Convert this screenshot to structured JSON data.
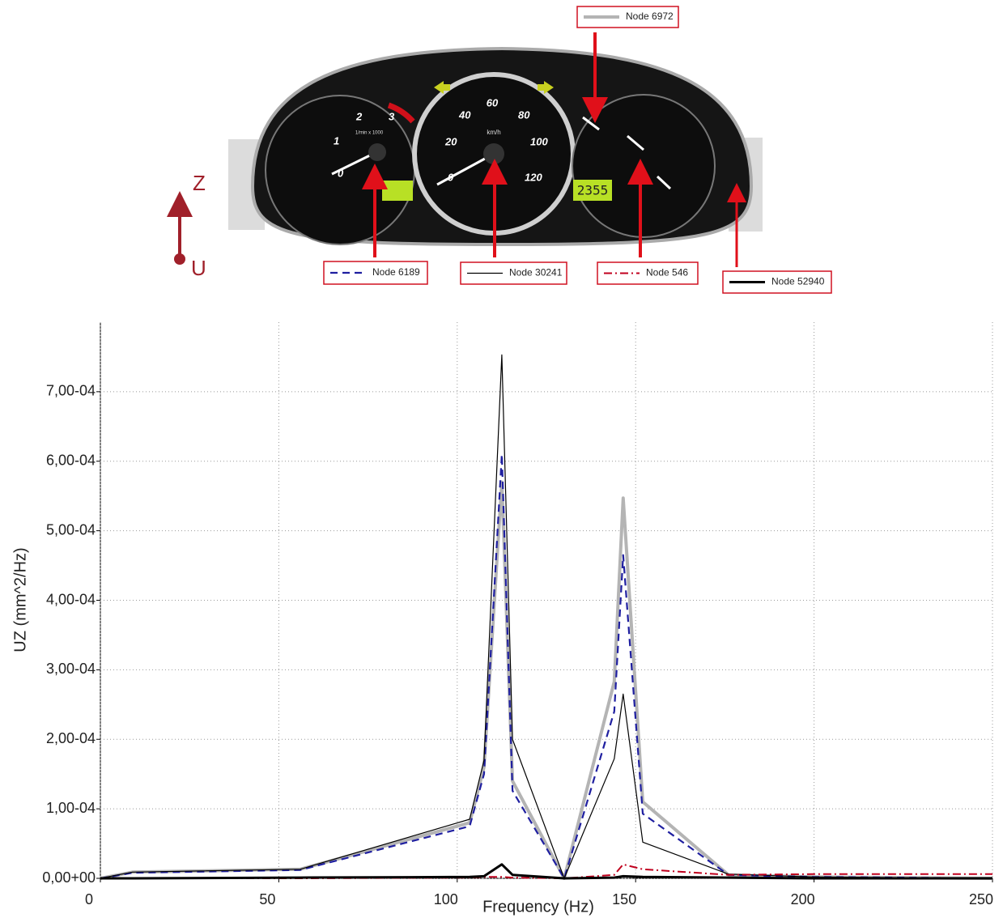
{
  "figure": {
    "axis_z": "Z",
    "axis_u": "U",
    "speed_unit": "km/h",
    "tach_unit": "1/min x 1000",
    "odometer": "2355",
    "speed_labels": [
      "0",
      "20",
      "40",
      "60",
      "80",
      "100",
      "120"
    ],
    "tach_labels": [
      "0",
      "1",
      "2",
      "3"
    ]
  },
  "chart_data": {
    "type": "line",
    "xlabel": "Frequency (Hz)",
    "ylabel": "UZ (mm^2/Hz)",
    "x": [
      0,
      9,
      56,
      103.5,
      107.5,
      112.5,
      115.5,
      130,
      144,
      146.5,
      152,
      176,
      200,
      250
    ],
    "series": [
      {
        "name": "Node 6972",
        "color": "#b4b4b4",
        "linestyle": "solid",
        "values": [
          0,
          9e-06,
          1.3e-05,
          8e-05,
          0.00016,
          0.00057,
          0.00014,
          0,
          0.000283,
          0.000547,
          0.00011,
          5e-06,
          2e-06,
          0
        ]
      },
      {
        "name": "Node 6189",
        "color": "#1f1fa0",
        "linestyle": "dashed",
        "values": [
          0,
          8e-06,
          1.2e-05,
          7.5e-05,
          0.00015,
          0.00061,
          0.000126,
          0,
          0.00024,
          0.000465,
          9.3e-05,
          5e-06,
          2e-06,
          0
        ]
      },
      {
        "name": "Node 30241",
        "color": "#000000",
        "linestyle": "solid",
        "values": [
          0,
          9e-06,
          1.3e-05,
          8.5e-05,
          0.00017,
          0.000753,
          0.0002,
          0,
          0.000172,
          0.000265,
          5.2e-05,
          6e-06,
          2e-06,
          0
        ]
      },
      {
        "name": "Node 546",
        "color": "#c0001e",
        "linestyle": "dashdot",
        "values": [
          0,
          0,
          0,
          1e-06,
          2e-06,
          2e-06,
          1e-06,
          0,
          5e-06,
          2e-05,
          1.3e-05,
          5e-06,
          6e-06,
          6e-06
        ]
      },
      {
        "name": "Node 52940",
        "color": "#000000",
        "linestyle": "solid",
        "values": [
          0,
          0,
          1e-06,
          2e-06,
          3e-06,
          2e-05,
          5e-06,
          0,
          1e-06,
          3e-06,
          2e-06,
          1e-06,
          0,
          0
        ]
      }
    ],
    "xlim": [
      0,
      250
    ],
    "xticks": [
      0,
      50,
      100,
      150,
      200,
      250
    ],
    "ylim": [
      0,
      0.0008
    ],
    "yticks": [
      {
        "value": 0,
        "label": "0,00+00"
      },
      {
        "value": 0.0001,
        "label": "1,00-04"
      },
      {
        "value": 0.0002,
        "label": "2,00-04"
      },
      {
        "value": 0.0003,
        "label": "3,00-04"
      },
      {
        "value": 0.0004,
        "label": "4,00-04"
      },
      {
        "value": 0.0005,
        "label": "5,00-04"
      },
      {
        "value": 0.0006,
        "label": "6,00-04"
      },
      {
        "value": 0.0007,
        "label": "7,00-04"
      }
    ],
    "grid": true
  }
}
